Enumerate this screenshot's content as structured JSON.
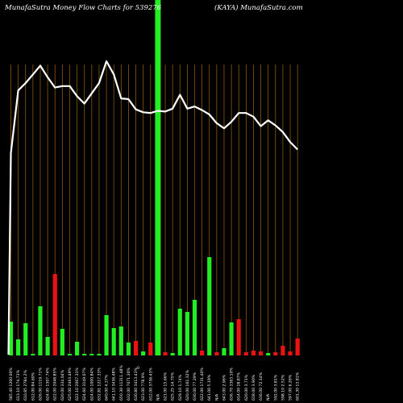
{
  "header": {
    "left_title": "MunafaSutra  Money Flow  Charts for 539276",
    "right_title": "(KAYA) MunafaSutra.com"
  },
  "colors": {
    "background": "#000000",
    "grid": "#8a5a10",
    "up": "#22ee22",
    "down": "#ee1111",
    "price_line": "#ffffff"
  },
  "chart_data": {
    "type": "bar",
    "title": "MunafaSutra  Money Flow  Charts for 539276",
    "subtitle": "(KAYA) MunafaSutra.com",
    "categories": [
      "585.40 1200.00%",
      "613.10 174.73%",
      "610.85 2784.2%",
      "612.00 84.60%",
      "626.00 1119.71%",
      "624.95 1307.74%",
      "622.00 2048.85%",
      "620.00 334.04%",
      "625.00 2463.49%",
      "622.10 2007.31%",
      "624.60 3149.07%",
      "624.00 1000.84%",
      "632.81 1217.33%",
      "640.00 4.37%",
      "641.10 3436.48%",
      "650.30 11311.48%",
      "632.00 7071.30%",
      "630.80 3413.43%",
      "623.00 778.9%",
      "612.00 3736.43%",
      "N/A",
      "621.00 15.66%",
      "625.25 14.75%",
      "629.10 1.74%",
      "620.00 161.32%",
      "630.00 77.29%",
      "622.00 1731.40%",
      "641.00 5.19%",
      "N/A",
      "643.00 2.96%",
      "636.70 3363.10%",
      "614.00 18.87%",
      "620.00 3.71%",
      "618.00 3.90%",
      "636.00 72.14%",
      "N/A",
      "592.00 3.81%",
      "598.10 2.52%",
      "597.00 6.26%",
      "601.30 13.81%"
    ],
    "values": [
      42,
      20,
      40,
      2,
      61,
      23,
      -101,
      33,
      2,
      17,
      2,
      2,
      2,
      50,
      34,
      36,
      16,
      -18,
      5,
      -16,
      220,
      -4,
      3,
      58,
      54,
      69,
      -6,
      122,
      -4,
      9,
      41,
      -45,
      -4,
      -6,
      -5,
      3,
      -4,
      -12,
      -5,
      -21
    ],
    "price_line": [
      624.0,
      632.6,
      633.6,
      634.8,
      636.0,
      634.4,
      633.0,
      633.2,
      633.2,
      631.8,
      630.8,
      632.2,
      633.6,
      636.6,
      634.8,
      631.5,
      631.4,
      630.0,
      629.6,
      629.5,
      629.8,
      629.7,
      630.1,
      632.0,
      630.1,
      630.4,
      629.9,
      629.3,
      628.1,
      627.4,
      628.3,
      629.5,
      629.5,
      629.0,
      627.7,
      628.5,
      627.8,
      626.9,
      625.5,
      624.5
    ],
    "baseline_label": "0",
    "grid": true,
    "legend": "none",
    "series": [
      {
        "values": [
          42,
          20,
          40,
          2,
          61,
          23,
          -101,
          33,
          2,
          17,
          2,
          2,
          2,
          50,
          34,
          36,
          16,
          -18,
          5,
          -16,
          220,
          -4,
          3,
          58,
          54,
          69,
          -6,
          122,
          -4,
          9,
          41,
          -45,
          -4,
          -6,
          -5,
          3,
          -4,
          -12,
          -5,
          -21
        ]
      }
    ]
  }
}
